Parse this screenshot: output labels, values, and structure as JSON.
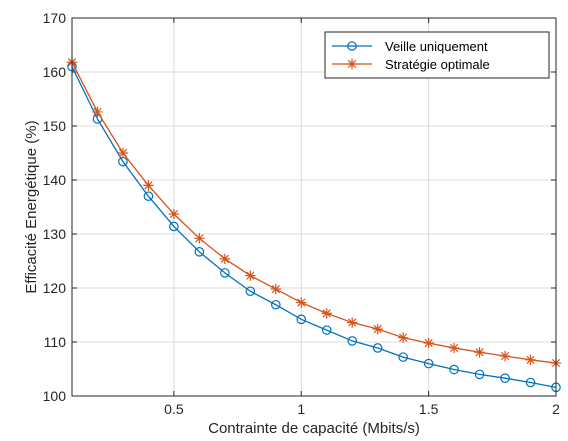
{
  "chart_data": {
    "type": "line",
    "xlabel": "Contrainte de capacité (Mbits/s)",
    "ylabel": "Efficacité Energétique (%)",
    "xlim": [
      0.1,
      2.0
    ],
    "ylim": [
      100,
      170
    ],
    "x_ticks": [
      0.5,
      1,
      1.5,
      2
    ],
    "x_tick_labels": [
      "0.5",
      "1",
      "1.5",
      "2"
    ],
    "y_ticks": [
      100,
      110,
      120,
      130,
      140,
      150,
      160,
      170
    ],
    "y_tick_labels": [
      "100",
      "110",
      "120",
      "130",
      "140",
      "150",
      "160",
      "170"
    ],
    "grid": true,
    "legend_position": "top-right",
    "x": [
      0.1,
      0.2,
      0.3,
      0.4,
      0.5,
      0.6,
      0.7,
      0.8,
      0.9,
      1.0,
      1.1,
      1.2,
      1.3,
      1.4,
      1.5,
      1.6,
      1.7,
      1.8,
      1.9,
      2.0
    ],
    "series": [
      {
        "name": "Veille uniquement",
        "color": "#0072BD",
        "marker": "circle",
        "values": [
          161.0,
          151.3,
          143.4,
          137.0,
          131.4,
          126.7,
          122.8,
          119.4,
          116.9,
          114.2,
          112.2,
          110.2,
          108.9,
          107.2,
          106.0,
          104.9,
          104.0,
          103.3,
          102.5,
          101.6
        ]
      },
      {
        "name": "Stratégie optimale",
        "color": "#D95319",
        "marker": "asterisk",
        "values": [
          161.8,
          152.6,
          145.0,
          139.0,
          133.7,
          129.2,
          125.4,
          122.3,
          119.8,
          117.3,
          115.3,
          113.6,
          112.4,
          110.8,
          109.8,
          108.9,
          108.1,
          107.4,
          106.7,
          106.1
        ]
      }
    ]
  }
}
